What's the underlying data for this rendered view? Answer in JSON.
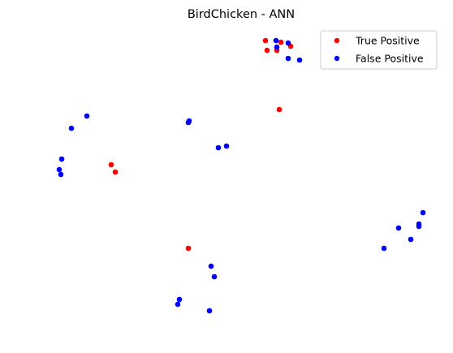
{
  "chart_data": {
    "type": "scatter",
    "title": "BirdChicken - ANN",
    "xlabel": "",
    "ylabel": "",
    "grid": false,
    "axes_visible": false,
    "legend_position": "top-right",
    "series": [
      {
        "name": "True Positive",
        "color": "#ff0000",
        "points": [
          [
            327,
            50
          ],
          [
            346,
            52
          ],
          [
            358,
            57
          ],
          [
            329,
            62
          ],
          [
            341,
            62
          ],
          [
            344,
            135
          ],
          [
            137,
            203
          ],
          [
            142,
            212
          ],
          [
            232,
            306
          ]
        ]
      },
      {
        "name": "False Positive",
        "color": "#0000ff",
        "points": [
          [
            340,
            50
          ],
          [
            355,
            53
          ],
          [
            341,
            58
          ],
          [
            355,
            72
          ],
          [
            369,
            74
          ],
          [
            107,
            143
          ],
          [
            88,
            158
          ],
          [
            233,
            149
          ],
          [
            232,
            151
          ],
          [
            279,
            180
          ],
          [
            269,
            182
          ],
          [
            76,
            196
          ],
          [
            73,
            209
          ],
          [
            75,
            215
          ],
          [
            521,
            262
          ],
          [
            516,
            276
          ],
          [
            516,
            279
          ],
          [
            491,
            281
          ],
          [
            506,
            295
          ],
          [
            473,
            306
          ],
          [
            260,
            328
          ],
          [
            264,
            341
          ],
          [
            221,
            369
          ],
          [
            219,
            375
          ],
          [
            258,
            383
          ]
        ]
      }
    ]
  }
}
